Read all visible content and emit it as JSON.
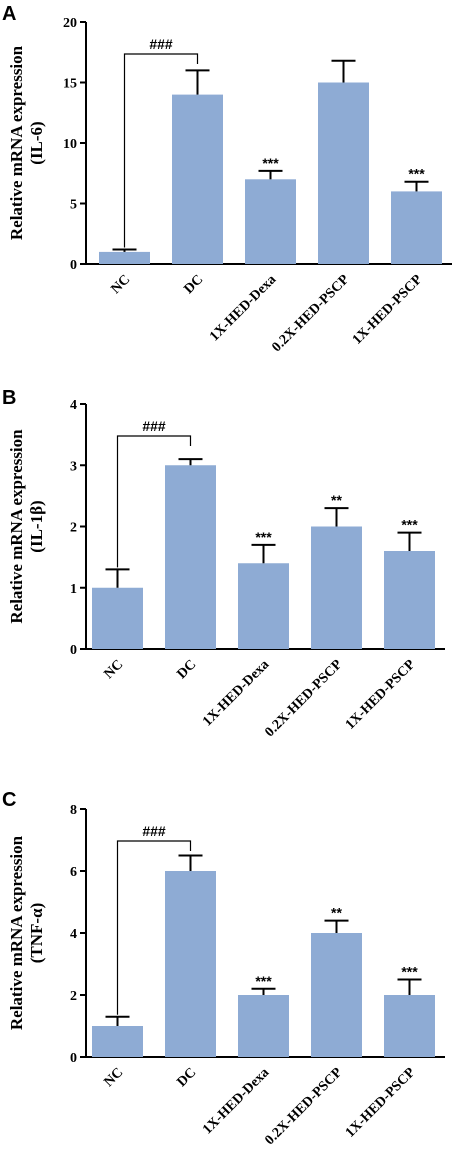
{
  "chart_data": [
    {
      "type": "bar",
      "panel": "A",
      "ylabel_line1": "Relative mRNA expression",
      "ylabel_line2": "(IL-6)",
      "categories": [
        "NC",
        "DC",
        "1X-HED-Dexa",
        "0.2X-HED-PSCP",
        "1X-HED-PSCP"
      ],
      "values": [
        1,
        14,
        7,
        15,
        6
      ],
      "errors": [
        0.2,
        2.0,
        0.7,
        1.8,
        0.8
      ],
      "significance": [
        "",
        "",
        "***",
        "",
        "***"
      ],
      "bracket_label": "###",
      "ylim": [
        0,
        20
      ],
      "yticks": [
        0,
        5,
        10,
        15,
        20
      ],
      "bar_color": "#8eabd4"
    },
    {
      "type": "bar",
      "panel": "B",
      "ylabel_line1": "Relative mRNA expression",
      "ylabel_line2": "(IL-1β)",
      "categories": [
        "NC",
        "DC",
        "1X-HED-Dexa",
        "0.2X-HED-PSCP",
        "1X-HED-PSCP"
      ],
      "values": [
        1,
        3,
        1.4,
        2,
        1.6
      ],
      "errors": [
        0.3,
        0.1,
        0.3,
        0.3,
        0.3
      ],
      "significance": [
        "",
        "",
        "***",
        "**",
        "***"
      ],
      "bracket_label": "###",
      "ylim": [
        0,
        4
      ],
      "yticks": [
        0,
        1,
        2,
        3,
        4
      ],
      "bar_color": "#8eabd4"
    },
    {
      "type": "bar",
      "panel": "C",
      "ylabel_line1": "Relative mRNA expression",
      "ylabel_line2": "(TNF-α)",
      "categories": [
        "NC",
        "DC",
        "1X-HED-Dexa",
        "0.2X-HED-PSCP",
        "1X-HED-PSCP"
      ],
      "values": [
        1,
        6,
        2,
        4,
        2
      ],
      "errors": [
        0.3,
        0.5,
        0.2,
        0.4,
        0.5
      ],
      "significance": [
        "",
        "",
        "***",
        "**",
        "***"
      ],
      "bracket_label": "###",
      "ylim": [
        0,
        8
      ],
      "yticks": [
        0,
        2,
        4,
        6,
        8
      ],
      "bar_color": "#8eabd4"
    }
  ]
}
